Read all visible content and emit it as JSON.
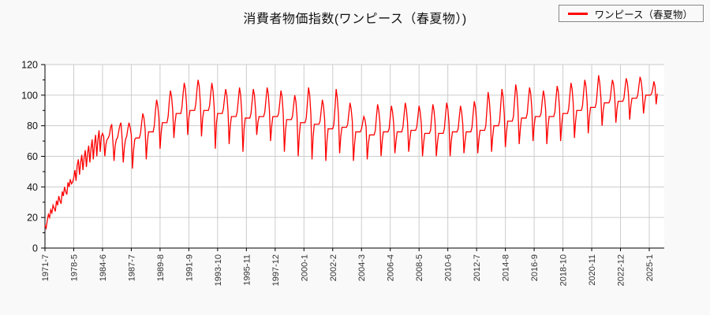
{
  "title": "消費者物価指数(ワンピース（春夏物）)",
  "legend": {
    "items": [
      {
        "label": "ワンピース（春夏物）",
        "color": "#ff0000"
      }
    ]
  },
  "colors": {
    "series": "#ff0000",
    "grid": "#cccccc",
    "axis": "#000000",
    "tick_text": "#333333",
    "plot_background": "#ffffff",
    "page_background": "#f9f9f9"
  },
  "chart_data": {
    "type": "line",
    "title": "消費者物価指数(ワンピース（春夏物）)",
    "xlabel": "",
    "ylabel": "",
    "ylim": [
      0,
      120
    ],
    "y_ticks": [
      0,
      20,
      40,
      60,
      80,
      100,
      120
    ],
    "y_minor_ticks": [
      10,
      30,
      50,
      70,
      90,
      110
    ],
    "grid": true,
    "legend_position": "top-right",
    "x_tick_labels": [
      "1971-7",
      "1978-5",
      "1984-6",
      "1987-7",
      "1989-8",
      "1991-9",
      "1993-10",
      "1995-11",
      "1997-12",
      "2000-1",
      "2002-2",
      "2004-3",
      "2006-4",
      "2008-5",
      "2010-6",
      "2012-7",
      "2014-8",
      "2016-9",
      "2018-10",
      "2020-11",
      "2022-12",
      "2025-1"
    ],
    "x_tick_interval_points": 25,
    "series": [
      {
        "name": "ワンピース（春夏物）",
        "color": "#ff0000",
        "values": [
          15,
          13,
          18,
          22,
          20,
          25,
          23,
          28,
          26,
          24,
          31,
          28,
          34,
          31,
          29,
          37,
          34,
          40,
          37,
          35,
          43,
          40,
          45,
          42,
          43,
          46,
          51,
          44,
          54,
          58,
          48,
          56,
          61,
          51,
          59,
          64,
          53,
          62,
          67,
          56,
          65,
          71,
          58,
          68,
          74,
          60,
          71,
          77,
          63,
          73,
          75,
          73,
          60,
          68,
          71,
          72,
          74,
          79,
          81,
          70,
          57,
          67,
          71,
          72,
          76,
          80,
          82,
          72,
          56,
          66,
          71,
          73,
          78,
          82,
          79,
          74,
          52,
          64,
          71,
          72,
          72,
          72,
          72,
          75,
          82,
          88,
          85,
          78,
          58,
          70,
          76,
          76,
          76,
          76,
          76,
          80,
          90,
          97,
          93,
          85,
          65,
          76,
          82,
          82,
          82,
          82,
          82,
          86,
          96,
          103,
          99,
          90,
          72,
          82,
          88,
          88,
          88,
          88,
          88,
          92,
          101,
          108,
          104,
          94,
          74,
          85,
          90,
          90,
          90,
          90,
          90,
          94,
          103,
          110,
          106,
          95,
          73,
          85,
          90,
          90,
          90,
          90,
          90,
          93,
          101,
          108,
          103,
          92,
          65,
          82,
          88,
          88,
          88,
          88,
          88,
          91,
          98,
          104,
          100,
          90,
          68,
          80,
          86,
          86,
          86,
          86,
          86,
          89,
          97,
          105,
          100,
          88,
          63,
          78,
          85,
          85,
          85,
          85,
          85,
          88,
          96,
          104,
          100,
          90,
          74,
          82,
          86,
          86,
          86,
          86,
          86,
          89,
          97,
          105,
          101,
          90,
          70,
          80,
          86,
          86,
          86,
          86,
          86,
          88,
          95,
          103,
          99,
          88,
          63,
          77,
          84,
          84,
          84,
          84,
          84,
          86,
          93,
          100,
          96,
          86,
          60,
          74,
          82,
          82,
          82,
          82,
          82,
          85,
          95,
          105,
          100,
          88,
          58,
          73,
          81,
          81,
          81,
          81,
          81,
          83,
          90,
          97,
          93,
          84,
          57,
          70,
          78,
          78,
          78,
          78,
          78,
          81,
          92,
          104,
          98,
          87,
          62,
          73,
          79,
          79,
          79,
          79,
          79,
          81,
          88,
          95,
          91,
          83,
          57,
          68,
          76,
          76,
          76,
          76,
          76,
          78,
          82,
          86,
          84,
          79,
          58,
          68,
          74,
          74,
          74,
          74,
          74,
          77,
          86,
          94,
          90,
          82,
          60,
          70,
          76,
          76,
          76,
          76,
          76,
          78,
          86,
          93,
          89,
          81,
          62,
          70,
          76,
          76,
          76,
          76,
          76,
          79,
          87,
          95,
          91,
          82,
          63,
          71,
          77,
          77,
          77,
          77,
          77,
          79,
          86,
          93,
          89,
          81,
          60,
          69,
          75,
          75,
          75,
          75,
          75,
          77,
          86,
          94,
          90,
          81,
          60,
          69,
          75,
          75,
          75,
          75,
          75,
          78,
          87,
          95,
          91,
          82,
          60,
          70,
          76,
          76,
          76,
          76,
          76,
          78,
          86,
          93,
          89,
          81,
          62,
          70,
          76,
          76,
          76,
          76,
          76,
          79,
          88,
          96,
          92,
          83,
          62,
          71,
          77,
          77,
          77,
          77,
          77,
          80,
          91,
          102,
          97,
          86,
          63,
          73,
          80,
          80,
          80,
          80,
          80,
          83,
          94,
          104,
          99,
          88,
          66,
          76,
          83,
          83,
          83,
          83,
          83,
          86,
          97,
          107,
          102,
          90,
          68,
          78,
          85,
          85,
          85,
          85,
          85,
          88,
          97,
          105,
          101,
          91,
          70,
          80,
          86,
          86,
          86,
          86,
          86,
          88,
          96,
          103,
          99,
          90,
          68,
          79,
          86,
          86,
          86,
          86,
          86,
          89,
          98,
          106,
          102,
          92,
          70,
          81,
          88,
          88,
          88,
          88,
          88,
          91,
          100,
          108,
          104,
          94,
          72,
          83,
          90,
          90,
          90,
          90,
          90,
          93,
          102,
          110,
          106,
          96,
          75,
          86,
          92,
          92,
          92,
          92,
          92,
          95,
          104,
          113,
          108,
          98,
          80,
          90,
          95,
          95,
          95,
          95,
          95,
          97,
          104,
          110,
          107,
          99,
          82,
          91,
          96,
          96,
          96,
          96,
          96,
          98,
          105,
          111,
          108,
          100,
          84,
          93,
          98,
          98,
          98,
          98,
          98,
          100,
          106,
          112,
          109,
          102,
          88,
          95,
          100,
          100,
          100,
          100,
          100,
          101,
          104,
          109,
          106,
          94,
          101
        ]
      }
    ]
  }
}
